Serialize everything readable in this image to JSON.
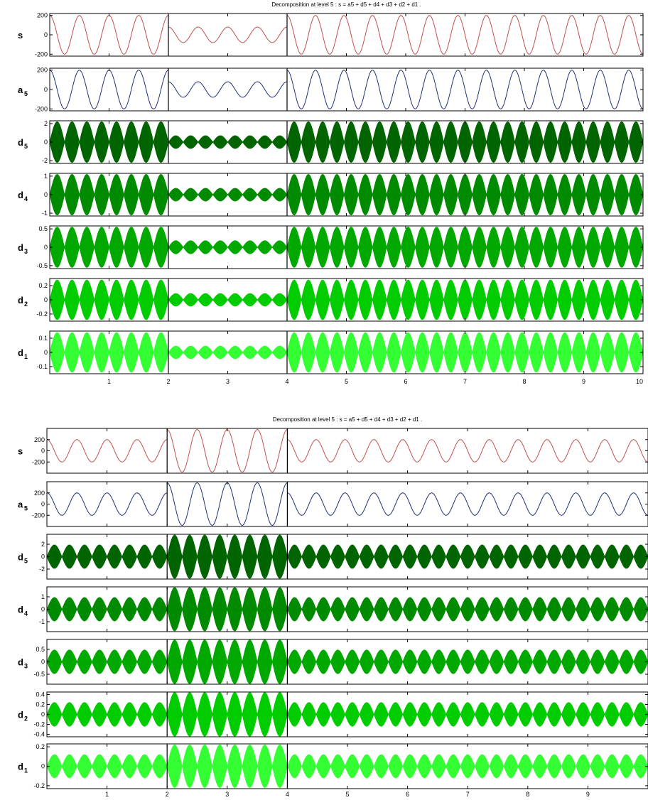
{
  "chart_data": [
    {
      "type": "line",
      "title": "Decomposition at level 5 : s = a5 + d5 + d4 + d3 + d2 + d1 .",
      "xlim": [
        0,
        10
      ],
      "xticks": [
        "1",
        "2",
        "3",
        "4",
        "5",
        "6",
        "7",
        "8",
        "9",
        "10"
      ],
      "segments": [
        {
          "x": [
            0,
            2
          ],
          "periods": 4
        },
        {
          "x": [
            2,
            4
          ],
          "periods": 4
        },
        {
          "x": [
            4,
            10
          ],
          "periods": 12.5
        }
      ],
      "rows": [
        {
          "name": "s",
          "sub": "",
          "kind": "wave",
          "color": "#c0504d",
          "amplitudes": [
            200,
            80,
            200
          ],
          "ylim": [
            -220,
            220
          ],
          "yticks": [
            "200",
            "0",
            "-200"
          ],
          "ytick_values": [
            200,
            0,
            -200
          ]
        },
        {
          "name": "a",
          "sub": "5",
          "kind": "wave",
          "color": "#1f2f7a",
          "amplitudes": [
            200,
            80,
            200
          ],
          "ylim": [
            -220,
            220
          ],
          "yticks": [
            "200",
            "0",
            "-200"
          ],
          "ytick_values": [
            200,
            0,
            -200
          ]
        },
        {
          "name": "d",
          "sub": "5",
          "kind": "envelope",
          "color": "#006400",
          "amplitudes": [
            2.2,
            0.7,
            2.2
          ],
          "ylim": [
            -2.3,
            2.3
          ],
          "yticks": [
            "2",
            "0",
            "-2"
          ],
          "ytick_values": [
            2,
            0,
            -2
          ]
        },
        {
          "name": "d",
          "sub": "4",
          "kind": "envelope",
          "color": "#008a00",
          "amplitudes": [
            1.1,
            0.35,
            1.1
          ],
          "ylim": [
            -1.15,
            1.15
          ],
          "yticks": [
            "1",
            "0",
            "-1"
          ],
          "ytick_values": [
            1,
            0,
            -1
          ]
        },
        {
          "name": "d",
          "sub": "3",
          "kind": "envelope",
          "color": "#00a800",
          "amplitudes": [
            0.55,
            0.18,
            0.55
          ],
          "ylim": [
            -0.58,
            0.58
          ],
          "yticks": [
            "0.5",
            "0",
            "-0.5"
          ],
          "ytick_values": [
            0.5,
            0,
            -0.5
          ]
        },
        {
          "name": "d",
          "sub": "2",
          "kind": "envelope",
          "color": "#00cc00",
          "amplitudes": [
            0.28,
            0.09,
            0.28
          ],
          "ylim": [
            -0.3,
            0.3
          ],
          "yticks": [
            "0.2",
            "0",
            "-0.2"
          ],
          "ytick_values": [
            0.2,
            0,
            -0.2
          ]
        },
        {
          "name": "d",
          "sub": "1",
          "kind": "envelope",
          "color": "#33ff33",
          "amplitudes": [
            0.14,
            0.045,
            0.14
          ],
          "ylim": [
            -0.15,
            0.15
          ],
          "yticks": [
            "0.1",
            "0",
            "-0.1"
          ],
          "ytick_values": [
            0.1,
            0,
            -0.1
          ]
        }
      ]
    },
    {
      "type": "line",
      "title": "Decomposition at level 5 : s = a5 + d5 + d4 + d3 + d2 + d1 .",
      "xlim": [
        0,
        10
      ],
      "xticks": [
        "1",
        "2",
        "3",
        "4",
        "5",
        "6",
        "7",
        "8",
        "9"
      ],
      "segments": [
        {
          "x": [
            0,
            2
          ],
          "periods": 4
        },
        {
          "x": [
            2,
            4
          ],
          "periods": 4
        },
        {
          "x": [
            4,
            10
          ],
          "periods": 12.5
        }
      ],
      "rows": [
        {
          "name": "s",
          "sub": "",
          "kind": "wave",
          "color": "#c0504d",
          "amplitudes": [
            200,
            380,
            200
          ],
          "ylim": [
            -400,
            400
          ],
          "yticks": [
            "200",
            "0",
            "-200"
          ],
          "ytick_values": [
            200,
            0,
            -200
          ]
        },
        {
          "name": "a",
          "sub": "5",
          "kind": "wave",
          "color": "#1f2f7a",
          "amplitudes": [
            200,
            380,
            200
          ],
          "ylim": [
            -400,
            400
          ],
          "yticks": [
            "200",
            "0",
            "-200"
          ],
          "ytick_values": [
            200,
            0,
            -200
          ]
        },
        {
          "name": "d",
          "sub": "5",
          "kind": "envelope",
          "color": "#006400",
          "amplitudes": [
            1.9,
            3.5,
            1.9
          ],
          "ylim": [
            -3.6,
            3.6
          ],
          "yticks": [
            "2",
            "0",
            "-2"
          ],
          "ytick_values": [
            2,
            0,
            -2
          ]
        },
        {
          "name": "d",
          "sub": "4",
          "kind": "envelope",
          "color": "#008a00",
          "amplitudes": [
            0.95,
            1.75,
            0.95
          ],
          "ylim": [
            -1.8,
            1.8
          ],
          "yticks": [
            "1",
            "0",
            "-1"
          ],
          "ytick_values": [
            1,
            0,
            -1
          ]
        },
        {
          "name": "d",
          "sub": "3",
          "kind": "envelope",
          "color": "#00a800",
          "amplitudes": [
            0.48,
            0.88,
            0.48
          ],
          "ylim": [
            -0.9,
            0.9
          ],
          "yticks": [
            "0.5",
            "0",
            "-0.5"
          ],
          "ytick_values": [
            0.5,
            0,
            -0.5
          ]
        },
        {
          "name": "d",
          "sub": "2",
          "kind": "envelope",
          "color": "#00cc00",
          "amplitudes": [
            0.24,
            0.44,
            0.24
          ],
          "ylim": [
            -0.45,
            0.45
          ],
          "yticks": [
            "0.4",
            "0.2",
            "0",
            "-0.2",
            "-0.4"
          ],
          "ytick_values": [
            0.4,
            0.2,
            0,
            -0.2,
            -0.4
          ]
        },
        {
          "name": "d",
          "sub": "1",
          "kind": "envelope",
          "color": "#33ff33",
          "amplitudes": [
            0.12,
            0.22,
            0.12
          ],
          "ylim": [
            -0.23,
            0.23
          ],
          "yticks": [
            "0.2",
            "0",
            "-0.2"
          ],
          "ytick_values": [
            0.2,
            0,
            -0.2
          ]
        }
      ]
    }
  ]
}
